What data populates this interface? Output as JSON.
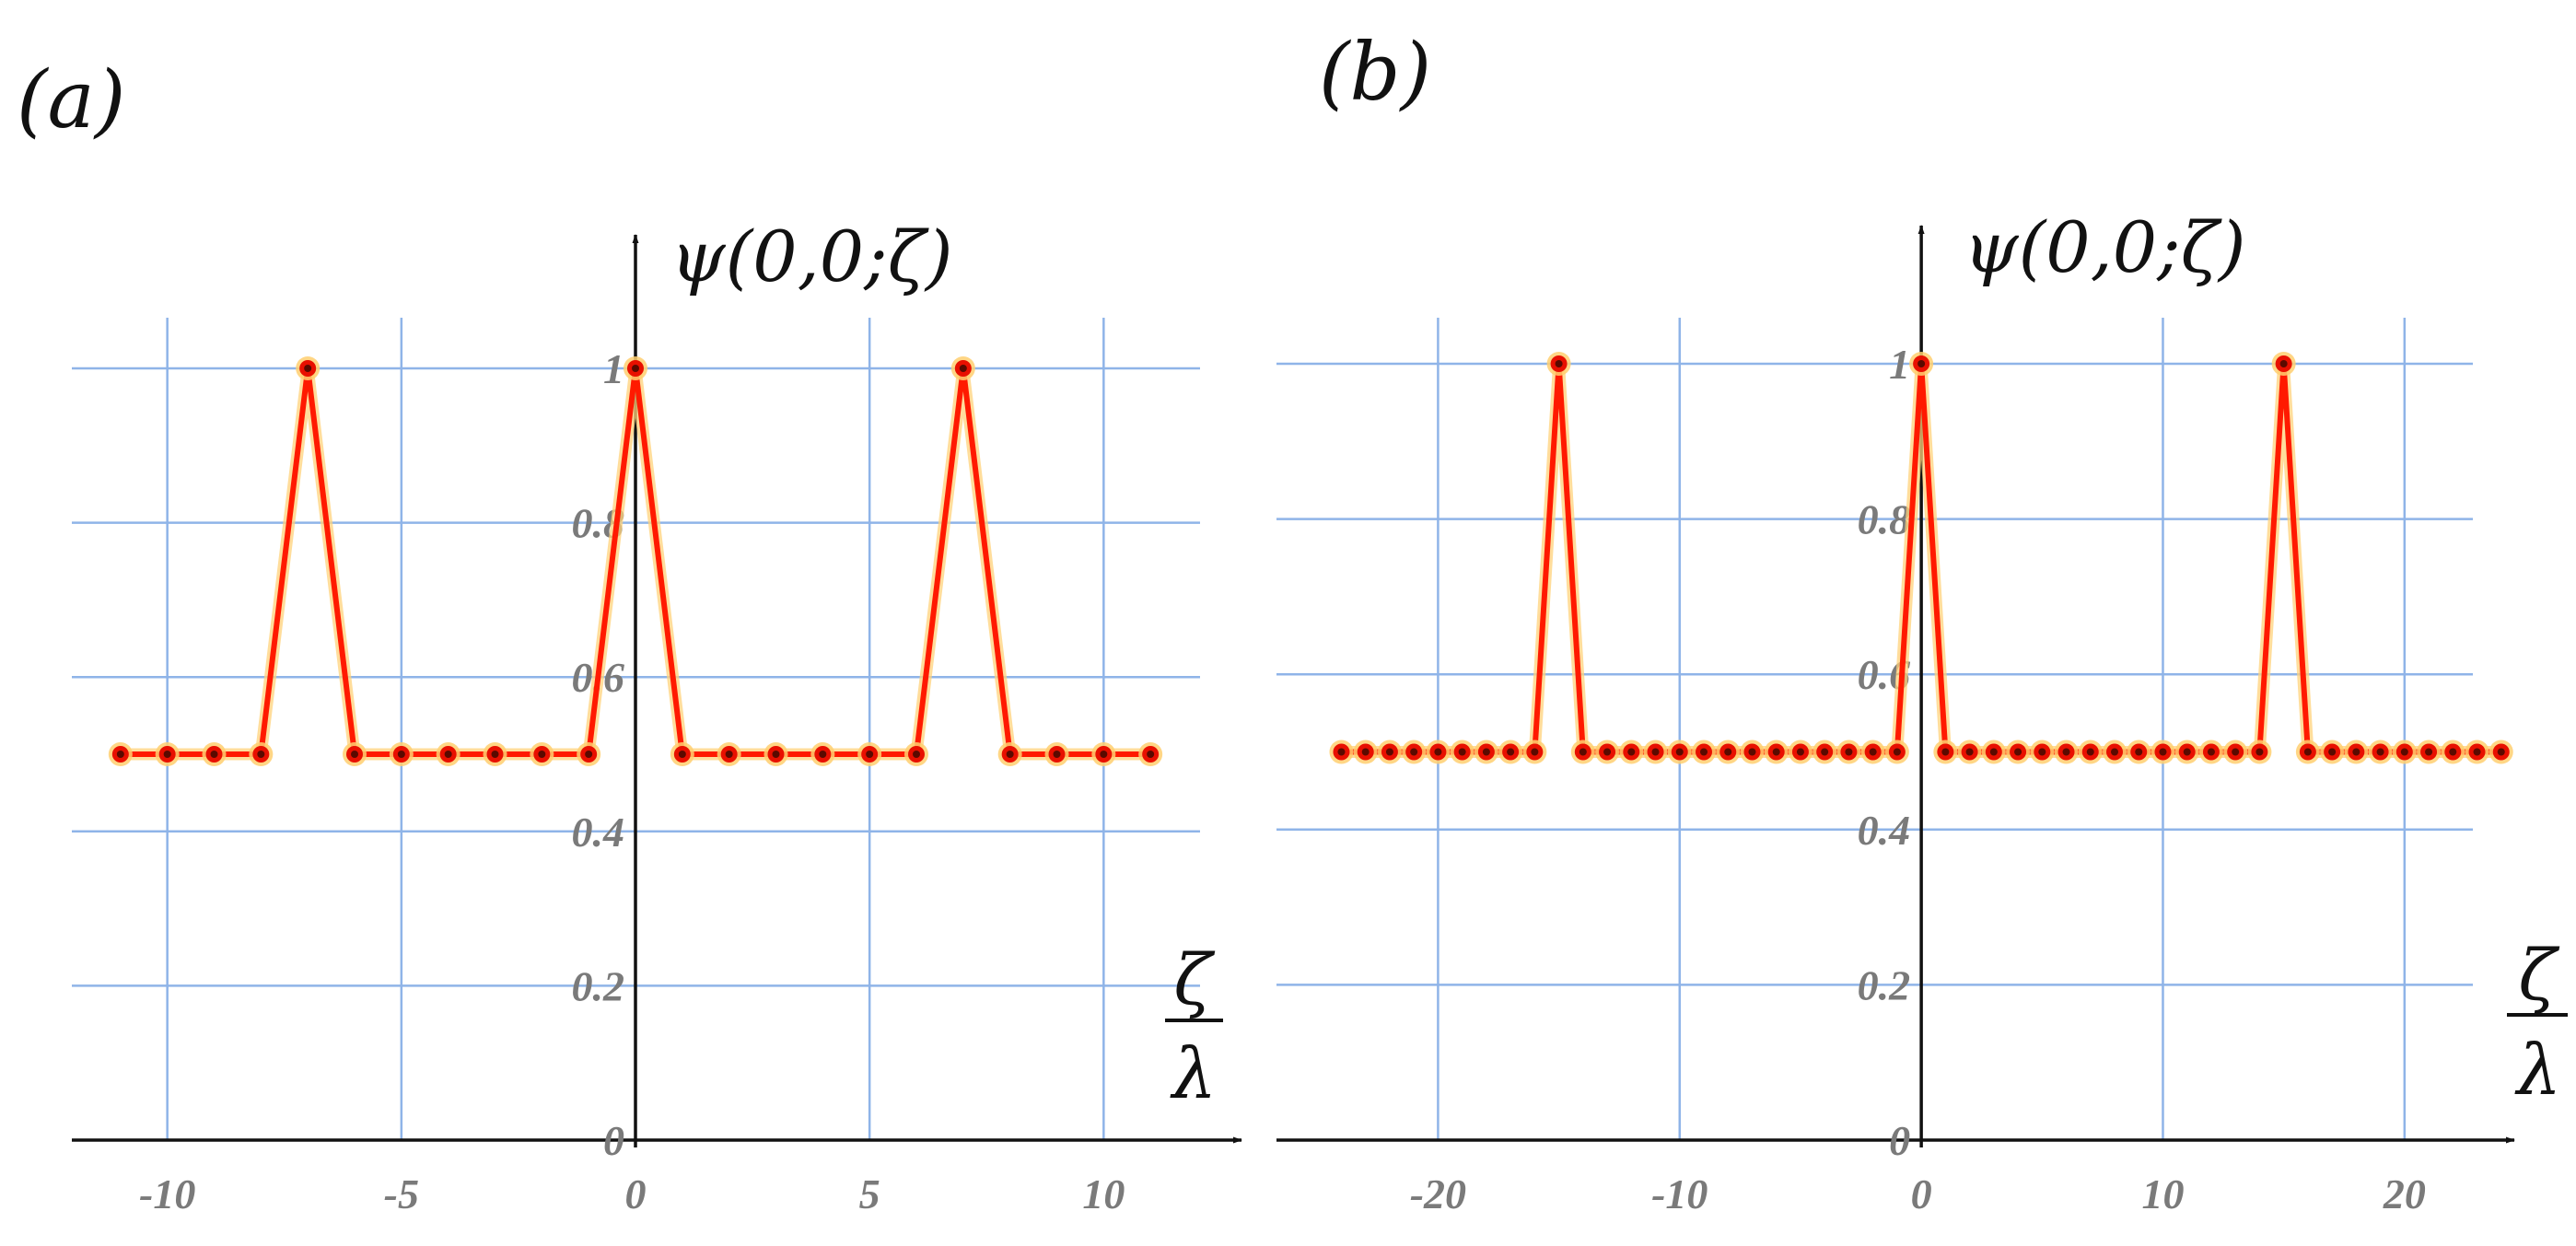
{
  "chart_data": [
    {
      "type": "line",
      "panel_label": "(a)",
      "ylabel": "ψ(0,0;ζ)",
      "xlabel_num": "ζ",
      "xlabel_den": "λ",
      "xlim": [
        -12,
        12
      ],
      "ylim": [
        0,
        1.1
      ],
      "x_ticks": [
        -10,
        -5,
        0,
        5,
        10
      ],
      "x_tick_labels": [
        "-10",
        "-5",
        "0",
        "5",
        "10"
      ],
      "y_ticks": [
        0,
        0.2,
        0.4,
        0.6,
        0.8,
        1
      ],
      "y_tick_labels": [
        "0",
        "0.2",
        "0.4",
        "0.6",
        "0.8",
        "1"
      ],
      "grid": true,
      "x": [
        -11,
        -10,
        -9,
        -8,
        -7,
        -6,
        -5,
        -4,
        -3,
        -2,
        -1,
        0,
        1,
        2,
        3,
        4,
        5,
        6,
        7,
        8,
        9,
        10,
        11
      ],
      "y": [
        0.5,
        0.5,
        0.5,
        0.5,
        1,
        0.5,
        0.5,
        0.5,
        0.5,
        0.5,
        0.5,
        1,
        0.5,
        0.5,
        0.5,
        0.5,
        0.5,
        0.5,
        1,
        0.5,
        0.5,
        0.5,
        0.5
      ],
      "colors": {
        "line": "#ff1a00",
        "grid": "#8fb4e8"
      }
    },
    {
      "type": "line",
      "panel_label": "(b)",
      "ylabel": "ψ(0,0;ζ)",
      "xlabel_num": "ζ",
      "xlabel_den": "λ",
      "xlim": [
        -26,
        25
      ],
      "ylim": [
        0,
        1.1
      ],
      "x_ticks": [
        -20,
        -10,
        0,
        10,
        20
      ],
      "x_tick_labels": [
        "-20",
        "-10",
        "0",
        "10",
        "20"
      ],
      "y_ticks": [
        0,
        0.2,
        0.4,
        0.6,
        0.8,
        1
      ],
      "y_tick_labels": [
        "0",
        "0.2",
        "0.4",
        "0.6",
        "0.8",
        "1"
      ],
      "grid": true,
      "x": [
        -24,
        -23,
        -22,
        -21,
        -20,
        -19,
        -18,
        -17,
        -16,
        -15,
        -14,
        -13,
        -12,
        -11,
        -10,
        -9,
        -8,
        -7,
        -6,
        -5,
        -4,
        -3,
        -2,
        -1,
        0,
        1,
        2,
        3,
        4,
        5,
        6,
        7,
        8,
        9,
        10,
        11,
        12,
        13,
        14,
        15,
        16,
        17,
        18,
        19,
        20,
        21,
        22,
        23,
        24
      ],
      "y": [
        0.5,
        0.5,
        0.5,
        0.5,
        0.5,
        0.5,
        0.5,
        0.5,
        0.5,
        1,
        0.5,
        0.5,
        0.5,
        0.5,
        0.5,
        0.5,
        0.5,
        0.5,
        0.5,
        0.5,
        0.5,
        0.5,
        0.5,
        0.5,
        1,
        0.5,
        0.5,
        0.5,
        0.5,
        0.5,
        0.5,
        0.5,
        0.5,
        0.5,
        0.5,
        0.5,
        0.5,
        0.5,
        0.5,
        1,
        0.5,
        0.5,
        0.5,
        0.5,
        0.5,
        0.5,
        0.5,
        0.5,
        0.5
      ],
      "colors": {
        "line": "#ff1a00",
        "grid": "#8fb4e8"
      }
    }
  ]
}
